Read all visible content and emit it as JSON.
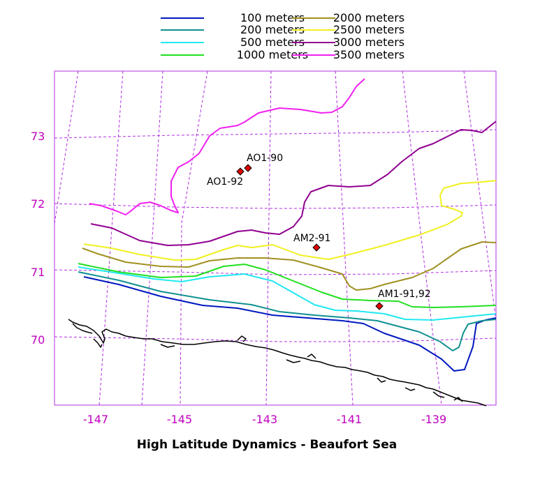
{
  "title": "High Latitude Dynamics - Beaufort Sea",
  "colors": {
    "graticule": "#b030e0",
    "tick_label": "#c000c0",
    "frame": "#b030e0",
    "coast": "#000000",
    "station_fill": "#e00000"
  },
  "legend": [
    {
      "label": "100 meters",
      "color": "#0018c0"
    },
    {
      "label": "200 meters",
      "color": "#109090"
    },
    {
      "label": "500 meters",
      "color": "#20e8f0"
    },
    {
      "label": "1000 meters",
      "color": "#20e020"
    },
    {
      "label": "2000 meters",
      "color": "#a09020"
    },
    {
      "label": "2500 meters",
      "color": "#f0f020"
    },
    {
      "label": "3000 meters",
      "color": "#900090"
    },
    {
      "label": "3500 meters",
      "color": "#f020f0"
    }
  ],
  "lat_ticks": [
    "73",
    "72",
    "71",
    "70"
  ],
  "lon_ticks": [
    "-147",
    "-145",
    "-143",
    "-141",
    "-139"
  ],
  "stations": [
    {
      "label": "AO1-90",
      "lon": -143.3,
      "lat": 72.5
    },
    {
      "label": "AO1-92",
      "lon": -143.5,
      "lat": 72.45
    },
    {
      "label": "AM2-91",
      "lon": -141.6,
      "lat": 71.35
    },
    {
      "label": "AM1-91,92",
      "lon": -140.2,
      "lat": 70.48
    }
  ]
}
